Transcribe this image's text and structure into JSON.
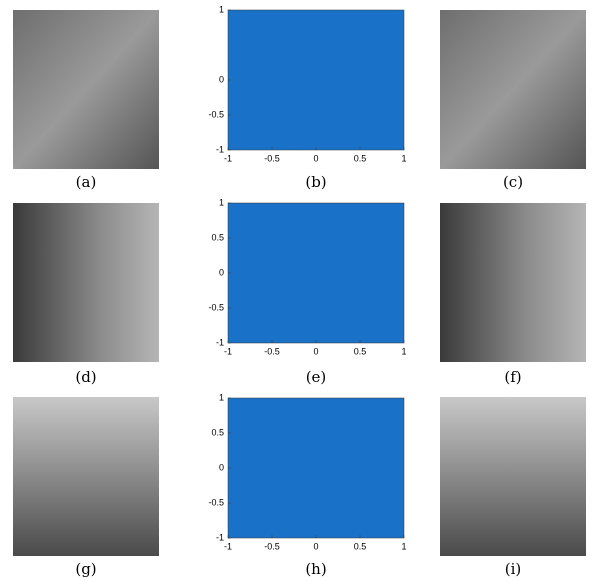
{
  "panels": [
    {
      "caption": "(a)"
    },
    {
      "caption": "(b)",
      "plot": {
        "color": "#1a72c8",
        "xlim": [
          -1,
          1
        ],
        "ylim": [
          -1,
          1
        ],
        "xticks": [
          -1,
          -0.5,
          0,
          0.5,
          1
        ],
        "yticks": [
          -1,
          -0.5,
          0,
          1
        ]
      }
    },
    {
      "caption": "(c)"
    },
    {
      "caption": "(d)"
    },
    {
      "caption": "(e)",
      "plot": {
        "color": "#1a72c8",
        "xlim": [
          -1,
          1
        ],
        "ylim": [
          -1,
          1
        ],
        "xticks": [
          -1,
          -0.5,
          0,
          0.5,
          1
        ],
        "yticks": [
          -1,
          -0.5,
          0,
          0.5,
          1
        ]
      }
    },
    {
      "caption": "(f)"
    },
    {
      "caption": "(g)"
    },
    {
      "caption": "(h)",
      "plot": {
        "color": "#1a72c8",
        "xlim": [
          -1,
          1
        ],
        "ylim": [
          -1,
          1
        ],
        "xticks": [
          -1,
          -0.5,
          0,
          0.5,
          1
        ],
        "yticks": [
          -1,
          -0.5,
          0,
          0.5,
          1
        ]
      }
    },
    {
      "caption": "(i)"
    }
  ]
}
